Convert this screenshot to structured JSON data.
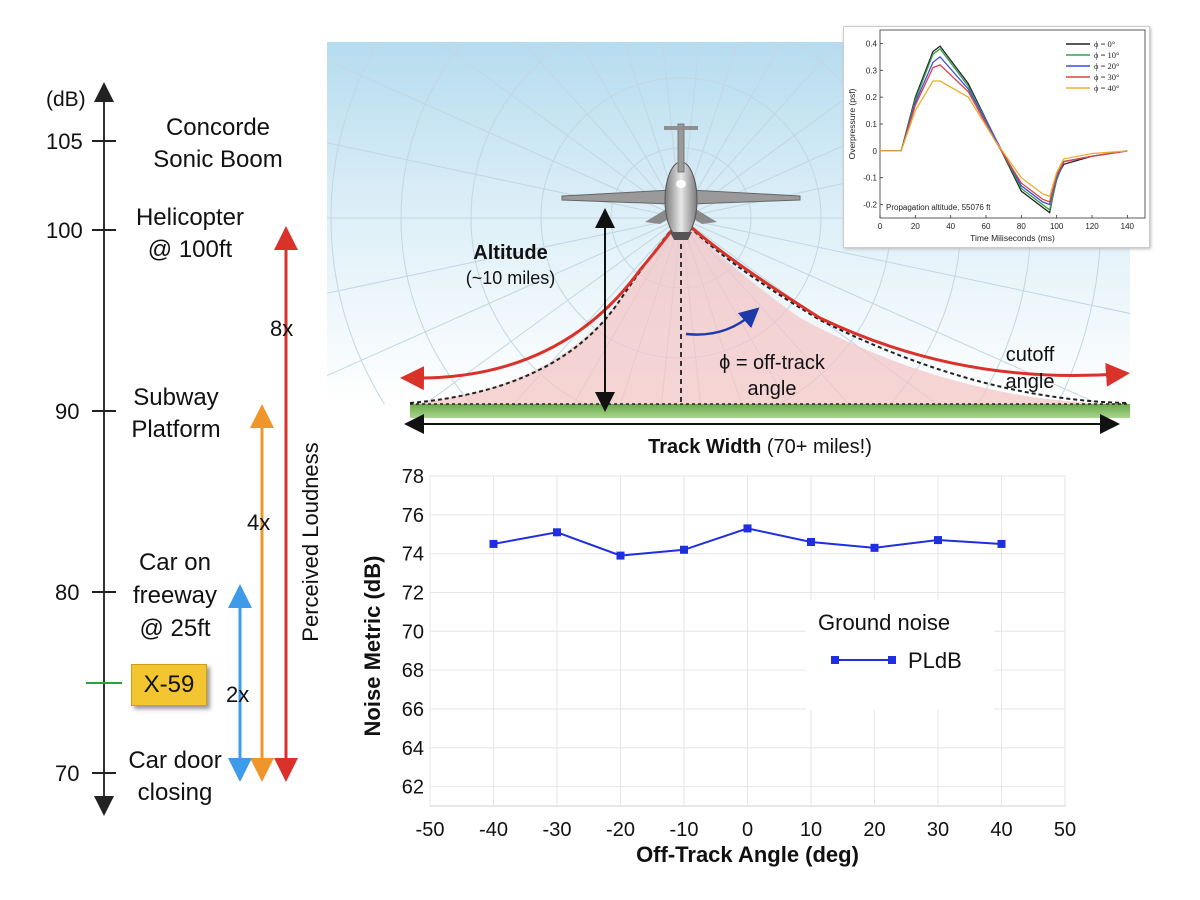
{
  "loudness_scale": {
    "unit": "(dB)",
    "ticks": [
      "105",
      "100",
      "90",
      "80",
      "70"
    ],
    "events": [
      {
        "line1": "Concorde",
        "line2": "Sonic Boom"
      },
      {
        "line1": "Helicopter",
        "line2": "@ 100ft"
      },
      {
        "line1": "Subway",
        "line2": "Platform"
      },
      {
        "line1": "Car on",
        "line2": "freeway",
        "line3": "@ 25ft"
      },
      {
        "line1": "Car door",
        "line2": "closing"
      }
    ],
    "x59_label": "X-59",
    "multipliers": [
      "8x",
      "4x",
      "2x"
    ],
    "axis_label": "Perceived Loudness"
  },
  "illustration": {
    "altitude_label": "Altitude",
    "altitude_value": "(~10 miles)",
    "phi_label": "ϕ = off-track",
    "phi_label_2": "angle",
    "cutoff_label": "cutoff",
    "cutoff_label_2": "angle",
    "track_width_label": "Track Width",
    "track_width_value": "(70+ miles!)"
  },
  "colors": {
    "red_arrow": "#d9322a",
    "orange_arrow": "#f0952a",
    "blue_arrow": "#3d9be9",
    "x59_fill": "#f2c531",
    "plot_series": "#1f2ee0"
  },
  "chart_data": [
    {
      "type": "line",
      "title": "",
      "xlabel": "Off-Track Angle (deg)",
      "ylabel": "Noise Metric (dB)",
      "xlim": [
        -50,
        50
      ],
      "ylim": [
        61,
        78
      ],
      "x_ticks": [
        "-50",
        "-40",
        "-30",
        "-20",
        "-10",
        "0",
        "10",
        "20",
        "30",
        "40",
        "50"
      ],
      "y_ticks": [
        "62",
        "64",
        "66",
        "68",
        "70",
        "72",
        "74",
        "76",
        "78"
      ],
      "legend_title": "Ground noise",
      "series": [
        {
          "name": "PLdB",
          "x": [
            -40,
            -30,
            -20,
            -10,
            0,
            10,
            20,
            30,
            40
          ],
          "y": [
            74.5,
            75.1,
            73.9,
            74.2,
            75.3,
            74.6,
            74.3,
            74.7,
            74.5
          ]
        }
      ]
    },
    {
      "type": "line",
      "title": "",
      "xlabel": "Time Miliseconds (ms)",
      "ylabel": "Overpressure (psf)",
      "xlim": [
        0,
        150
      ],
      "ylim": [
        -0.25,
        0.45
      ],
      "x_ticks": [
        "0",
        "20",
        "40",
        "60",
        "80",
        "100",
        "120",
        "140"
      ],
      "y_ticks": [
        "0.4",
        "0.3",
        "0.2",
        "0.1",
        "0",
        "-0.1",
        "-0.2"
      ],
      "annotation": "Propagation altitude, 55076 ft",
      "series": [
        {
          "name": "ϕ =  0°",
          "color": "#222222",
          "x": [
            0,
            12,
            20,
            30,
            34,
            50,
            65,
            80,
            92,
            96,
            100,
            104,
            120,
            140
          ],
          "y": [
            0,
            0,
            0.2,
            0.37,
            0.39,
            0.25,
            0.05,
            -0.15,
            -0.21,
            -0.23,
            -0.1,
            -0.05,
            -0.02,
            0
          ]
        },
        {
          "name": "ϕ = 10°",
          "color": "#3aa04a",
          "x": [
            0,
            12,
            20,
            30,
            34,
            50,
            65,
            80,
            92,
            96,
            100,
            104,
            120,
            140
          ],
          "y": [
            0,
            0,
            0.19,
            0.36,
            0.38,
            0.24,
            0.05,
            -0.14,
            -0.2,
            -0.22,
            -0.11,
            -0.04,
            -0.02,
            0
          ]
        },
        {
          "name": "ϕ = 20°",
          "color": "#3b4ee0",
          "x": [
            0,
            12,
            20,
            30,
            34,
            50,
            65,
            80,
            92,
            96,
            100,
            104,
            120,
            140
          ],
          "y": [
            0,
            0,
            0.18,
            0.33,
            0.35,
            0.23,
            0.05,
            -0.13,
            -0.19,
            -0.2,
            -0.1,
            -0.04,
            -0.02,
            0
          ]
        },
        {
          "name": "ϕ = 30°",
          "color": "#e0404a",
          "x": [
            0,
            12,
            20,
            30,
            34,
            50,
            65,
            80,
            92,
            96,
            100,
            104,
            120,
            140
          ],
          "y": [
            0,
            0,
            0.17,
            0.31,
            0.32,
            0.22,
            0.04,
            -0.12,
            -0.18,
            -0.19,
            -0.09,
            -0.04,
            -0.02,
            0
          ]
        },
        {
          "name": "ϕ = 40°",
          "color": "#e8b030",
          "x": [
            0,
            12,
            20,
            30,
            34,
            50,
            65,
            80,
            92,
            96,
            100,
            104,
            120,
            140
          ],
          "y": [
            0,
            0,
            0.15,
            0.26,
            0.26,
            0.2,
            0.04,
            -0.1,
            -0.16,
            -0.17,
            -0.08,
            -0.03,
            -0.01,
            0
          ]
        }
      ]
    }
  ]
}
